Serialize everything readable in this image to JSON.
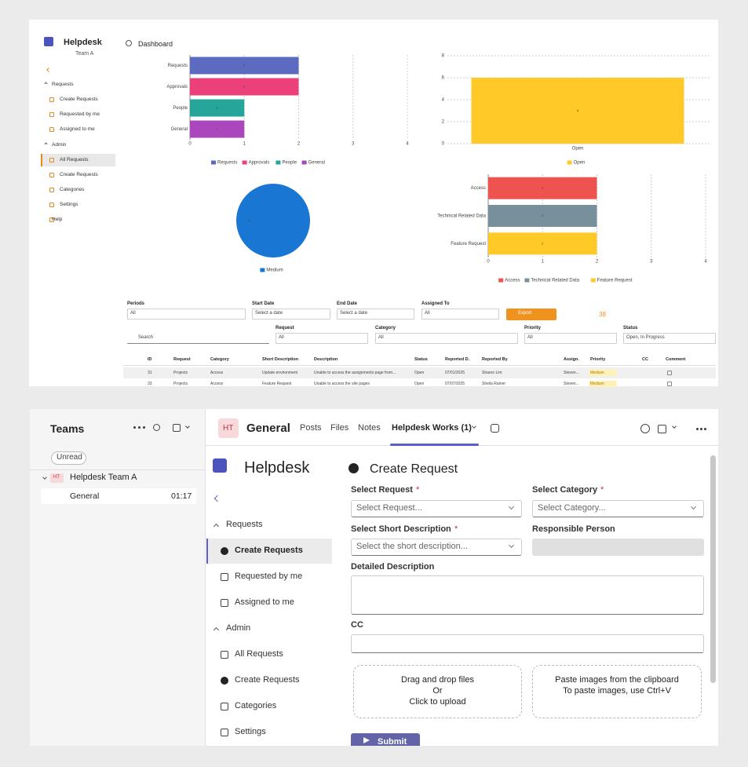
{
  "dashboard": {
    "app_title": "Helpdesk",
    "team": "Team A",
    "tab": "Dashboard",
    "nav": [
      "Requests",
      "Create Requests",
      "Requested by me",
      "Assigned to me",
      "Admin",
      "All Requests",
      "Create Requests",
      "Categories",
      "Settings",
      "Help"
    ],
    "filters": {
      "periods": {
        "label": "Periods",
        "value": "All"
      },
      "start_date": {
        "label": "Start Date",
        "value": "Select a date"
      },
      "end_date": {
        "label": "End Date",
        "value": "Select a date"
      },
      "assigned_to": {
        "label": "Assigned To",
        "value": "All"
      },
      "export": "Export",
      "count": "38",
      "search": "Search",
      "request": {
        "label": "Request",
        "value": "All"
      },
      "category": {
        "label": "Category",
        "value": "All"
      },
      "priority": {
        "label": "Priority",
        "value": "All"
      },
      "status": {
        "label": "Status",
        "value": "Open, In Progress"
      }
    },
    "table": {
      "headers": [
        "ID",
        "Request",
        "Category",
        "Short Description",
        "Description",
        "Status",
        "Reported D.",
        "Reported By",
        "Assign.",
        "Priority",
        "CC",
        "Comment"
      ],
      "rows": [
        {
          "id": "31",
          "request": "Projects",
          "category": "Access",
          "short_description": "Update environment",
          "description": "Unable to access the assignments page from...",
          "status": "Open",
          "reported_date": "07/01/2025",
          "reported_by": "Sharon Lim",
          "assigned": "Steven...",
          "priority": "Medium"
        },
        {
          "id": "33",
          "request": "Projects",
          "category": "Access",
          "short_description": "Feature Request",
          "description": "Unable to access the site pages",
          "status": "Open",
          "reported_date": "07/07/2025",
          "reported_by": "Sheila Rainer",
          "assigned": "Steven...",
          "priority": "Medium"
        }
      ]
    }
  },
  "chart_data": [
    {
      "type": "bar",
      "orientation": "horizontal",
      "categories": [
        "Requests",
        "Approvals",
        "People",
        "General"
      ],
      "values": [
        2,
        2,
        1,
        1
      ],
      "colors": [
        "#5c6bc0",
        "#ec407a",
        "#26a69a",
        "#ab47bc"
      ],
      "xlim": [
        0,
        4
      ],
      "xticks": [
        0,
        1,
        2,
        3,
        4
      ],
      "grid": true
    },
    {
      "type": "bar",
      "orientation": "vertical",
      "categories": [
        "Open"
      ],
      "values": [
        6
      ],
      "colors": [
        "#ffca28"
      ],
      "ylim": [
        0,
        8
      ],
      "yticks": [
        0,
        2,
        4,
        6,
        8
      ],
      "grid": true
    },
    {
      "type": "pie",
      "categories": [
        "Medium"
      ],
      "values": [
        6
      ],
      "colors": [
        "#1976d2"
      ]
    },
    {
      "type": "bar",
      "orientation": "horizontal",
      "categories": [
        "Access",
        "Technical Related Data",
        "Feature Request"
      ],
      "values": [
        2,
        2,
        2
      ],
      "colors": [
        "#ef5350",
        "#78909c",
        "#ffca28"
      ],
      "xlim": [
        0,
        4
      ],
      "xticks": [
        0,
        1,
        2,
        3,
        4
      ],
      "grid": true
    }
  ],
  "teams": {
    "title": "Teams",
    "filter": "Unread",
    "team_initials": "HT",
    "team_name": "Helpdesk Team A",
    "channel": "General",
    "time": "01:17",
    "tabs": [
      "Posts",
      "Files",
      "Notes",
      "Helpdesk Works (1)"
    ],
    "app": {
      "title": "Helpdesk",
      "nav": [
        "Requests",
        "Create Requests",
        "Requested by me",
        "Assigned to me",
        "Admin",
        "All Requests",
        "Create Requests",
        "Categories",
        "Settings"
      ],
      "form": {
        "heading": "Create Request",
        "required_mark": "*",
        "select_request": {
          "label": "Select Request",
          "placeholder": "Select Request..."
        },
        "select_category": {
          "label": "Select Category",
          "placeholder": "Select Category..."
        },
        "select_short_description": {
          "label": "Select Short Description",
          "placeholder": "Select the short description..."
        },
        "responsible_person": {
          "label": "Responsible Person"
        },
        "detailed_description": {
          "label": "Detailed Description"
        },
        "cc": {
          "label": "CC"
        },
        "upload": [
          "Drag and drop files",
          "Or",
          "Click to upload"
        ],
        "paste": [
          "Paste images from the clipboard",
          "To paste images, use Ctrl+V"
        ],
        "submit": "Submit"
      }
    }
  }
}
